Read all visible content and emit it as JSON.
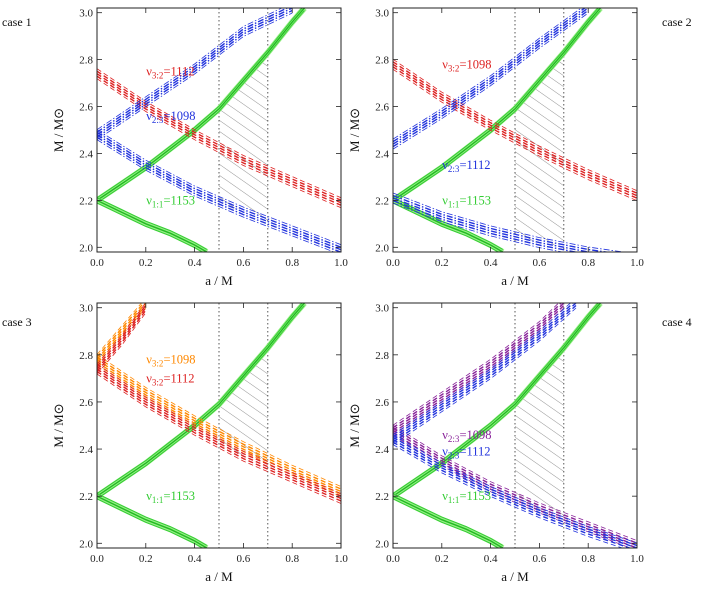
{
  "figure": {
    "xlabel": "a / M",
    "ylabel": "M / M⊙"
  },
  "chart_data": [
    {
      "type": "line",
      "case_label": "case 1",
      "xlim": [
        0,
        1
      ],
      "ylim": [
        1.98,
        3.02
      ],
      "xticks": [
        0.0,
        0.2,
        0.4,
        0.6,
        0.8,
        1.0
      ],
      "yticks": [
        2.0,
        2.2,
        2.4,
        2.6,
        2.8,
        3.0
      ],
      "vlines": [
        0.5,
        0.7
      ],
      "hatched_region_x": [
        0.5,
        0.7
      ],
      "series": [
        {
          "name": "ν1:1=1153",
          "ratio": "1:1",
          "freq": "1153",
          "color": "#33cc33",
          "style": "solid",
          "x": [
            0,
            0.1,
            0.2,
            0.3,
            0.4,
            0.5,
            0.6,
            0.7,
            0.8,
            0.85
          ],
          "y": [
            2.2,
            2.27,
            2.34,
            2.42,
            2.5,
            2.59,
            2.71,
            2.83,
            2.96,
            3.02
          ],
          "lower_x": [
            0,
            0.1,
            0.2,
            0.3,
            0.4,
            0.45
          ],
          "lower_y": [
            2.2,
            2.15,
            2.1,
            2.06,
            2.01,
            1.98
          ],
          "label_pos": [
            0.12,
            2.2
          ]
        },
        {
          "name": "ν3:2=1112",
          "ratio": "3:2",
          "freq": "1112",
          "color": "#dd2222",
          "style": "dashed",
          "x": [
            0,
            0.2,
            0.4,
            0.6,
            0.8,
            1.0
          ],
          "y": [
            2.74,
            2.6,
            2.48,
            2.37,
            2.28,
            2.19
          ],
          "label_pos": [
            0.12,
            2.75
          ]
        },
        {
          "name": "ν2:3=1098",
          "ratio": "2:3",
          "freq": "1098",
          "color": "#2233dd",
          "style": "dashdot",
          "x": [
            0,
            0.2,
            0.4,
            0.6,
            0.8,
            1.0
          ],
          "y": [
            2.48,
            2.35,
            2.24,
            2.15,
            2.07,
            1.99
          ],
          "x2": [
            0,
            0.2,
            0.4,
            0.6,
            0.8
          ],
          "y2": [
            2.48,
            2.62,
            2.76,
            2.92,
            3.02
          ],
          "label_pos": [
            0.12,
            2.56
          ]
        }
      ]
    },
    {
      "type": "line",
      "case_label": "case 2",
      "xlim": [
        0,
        1
      ],
      "ylim": [
        1.98,
        3.02
      ],
      "xticks": [
        0.0,
        0.2,
        0.4,
        0.6,
        0.8,
        1.0
      ],
      "yticks": [
        2.0,
        2.2,
        2.4,
        2.6,
        2.8,
        3.0
      ],
      "vlines": [
        0.5,
        0.7
      ],
      "hatched_region_x": [
        0.5,
        0.7
      ],
      "series": [
        {
          "name": "ν1:1=1153",
          "ratio": "1:1",
          "freq": "1153",
          "color": "#33cc33",
          "style": "solid",
          "x": [
            0,
            0.1,
            0.2,
            0.3,
            0.4,
            0.5,
            0.6,
            0.7,
            0.8,
            0.85
          ],
          "y": [
            2.2,
            2.27,
            2.34,
            2.42,
            2.5,
            2.59,
            2.71,
            2.83,
            2.96,
            3.02
          ],
          "lower_x": [
            0,
            0.1,
            0.2,
            0.3,
            0.4,
            0.45
          ],
          "lower_y": [
            2.2,
            2.15,
            2.1,
            2.06,
            2.01,
            1.98
          ],
          "label_pos": [
            0.12,
            2.2
          ]
        },
        {
          "name": "ν3:2=1098",
          "ratio": "3:2",
          "freq": "1098",
          "color": "#dd2222",
          "style": "dashed",
          "x": [
            0,
            0.2,
            0.4,
            0.6,
            0.8,
            1.0
          ],
          "y": [
            2.78,
            2.64,
            2.52,
            2.41,
            2.31,
            2.22
          ],
          "label_pos": [
            0.12,
            2.78
          ]
        },
        {
          "name": "ν2:3=1112",
          "ratio": "2:3",
          "freq": "1112",
          "color": "#2233dd",
          "style": "dashdot",
          "x": [
            0,
            0.2,
            0.4,
            0.6,
            0.8,
            1.0
          ],
          "y": [
            2.21,
            2.13,
            2.07,
            2.02,
            1.98,
            1.95
          ],
          "x2": [
            0,
            0.2,
            0.4,
            0.6,
            0.8
          ],
          "y2": [
            2.44,
            2.57,
            2.71,
            2.87,
            3.02
          ],
          "label_pos": [
            0.12,
            2.35
          ]
        }
      ]
    },
    {
      "type": "line",
      "case_label": "case 3",
      "xlim": [
        0,
        1
      ],
      "ylim": [
        1.98,
        3.02
      ],
      "xticks": [
        0.0,
        0.2,
        0.4,
        0.6,
        0.8,
        1.0
      ],
      "yticks": [
        2.0,
        2.2,
        2.4,
        2.6,
        2.8,
        3.0
      ],
      "vlines": [
        0.5,
        0.7
      ],
      "hatched_region_x": [
        0.5,
        0.7
      ],
      "series": [
        {
          "name": "ν1:1=1153",
          "ratio": "1:1",
          "freq": "1153",
          "color": "#33cc33",
          "style": "solid",
          "x": [
            0,
            0.1,
            0.2,
            0.3,
            0.4,
            0.5,
            0.6,
            0.7,
            0.8,
            0.85
          ],
          "y": [
            2.2,
            2.27,
            2.34,
            2.42,
            2.5,
            2.59,
            2.71,
            2.83,
            2.96,
            3.02
          ],
          "lower_x": [
            0,
            0.1,
            0.2,
            0.3,
            0.4,
            0.45
          ],
          "lower_y": [
            2.2,
            2.15,
            2.1,
            2.06,
            2.01,
            1.98
          ],
          "label_pos": [
            0.12,
            2.2
          ]
        },
        {
          "name": "ν3:2=1098",
          "ratio": "3:2",
          "freq": "1098",
          "color": "#ff8800",
          "style": "dashed",
          "x": [
            0,
            0.2,
            0.4,
            0.6,
            0.8,
            1.0
          ],
          "y": [
            2.78,
            2.64,
            2.52,
            2.41,
            2.31,
            2.22
          ],
          "x2": [
            0,
            0.1,
            0.2
          ],
          "y2": [
            2.78,
            2.9,
            3.02
          ],
          "label_pos": [
            0.12,
            2.78
          ]
        },
        {
          "name": "ν3:2=1112",
          "ratio": "3:2",
          "freq": "1112",
          "color": "#dd2222",
          "style": "dashed",
          "x": [
            0,
            0.2,
            0.4,
            0.6,
            0.8,
            1.0
          ],
          "y": [
            2.74,
            2.6,
            2.48,
            2.37,
            2.28,
            2.19
          ],
          "x2": [
            0,
            0.1,
            0.2
          ],
          "y2": [
            2.74,
            2.86,
            3.0
          ],
          "label_pos": [
            0.12,
            2.7
          ]
        }
      ]
    },
    {
      "type": "line",
      "case_label": "case 4",
      "xlim": [
        0,
        1
      ],
      "ylim": [
        1.98,
        3.02
      ],
      "xticks": [
        0.0,
        0.2,
        0.4,
        0.6,
        0.8,
        1.0
      ],
      "yticks": [
        2.0,
        2.2,
        2.4,
        2.6,
        2.8,
        3.0
      ],
      "vlines": [
        0.5,
        0.7
      ],
      "hatched_region_x": [
        0.5,
        0.7
      ],
      "series": [
        {
          "name": "ν1:1=1153",
          "ratio": "1:1",
          "freq": "1153",
          "color": "#33cc33",
          "style": "solid",
          "x": [
            0,
            0.1,
            0.2,
            0.3,
            0.4,
            0.5,
            0.6,
            0.7,
            0.8,
            0.85
          ],
          "y": [
            2.2,
            2.27,
            2.34,
            2.42,
            2.5,
            2.59,
            2.71,
            2.83,
            2.96,
            3.02
          ],
          "lower_x": [
            0,
            0.1,
            0.2,
            0.3,
            0.4,
            0.45
          ],
          "lower_y": [
            2.2,
            2.15,
            2.1,
            2.06,
            2.01,
            1.98
          ],
          "label_pos": [
            0.12,
            2.2
          ]
        },
        {
          "name": "ν2:3=1098",
          "ratio": "2:3",
          "freq": "1098",
          "color": "#882299",
          "style": "dashed",
          "x": [
            0,
            0.2,
            0.4,
            0.6,
            0.8,
            1.0
          ],
          "y": [
            2.48,
            2.35,
            2.24,
            2.15,
            2.07,
            1.99
          ],
          "x2": [
            0,
            0.2,
            0.4,
            0.6,
            0.7
          ],
          "y2": [
            2.48,
            2.62,
            2.76,
            2.92,
            3.02
          ],
          "label_pos": [
            0.12,
            2.46
          ]
        },
        {
          "name": "ν2:3=1112",
          "ratio": "2:3",
          "freq": "1112",
          "color": "#2233dd",
          "style": "dashed",
          "x": [
            0,
            0.2,
            0.4,
            0.6,
            0.8,
            1.0
          ],
          "y": [
            2.44,
            2.32,
            2.22,
            2.13,
            2.05,
            1.98
          ],
          "x2": [
            0,
            0.2,
            0.4,
            0.6,
            0.75
          ],
          "y2": [
            2.44,
            2.58,
            2.72,
            2.88,
            3.02
          ],
          "label_pos": [
            0.12,
            2.39
          ]
        }
      ]
    }
  ]
}
